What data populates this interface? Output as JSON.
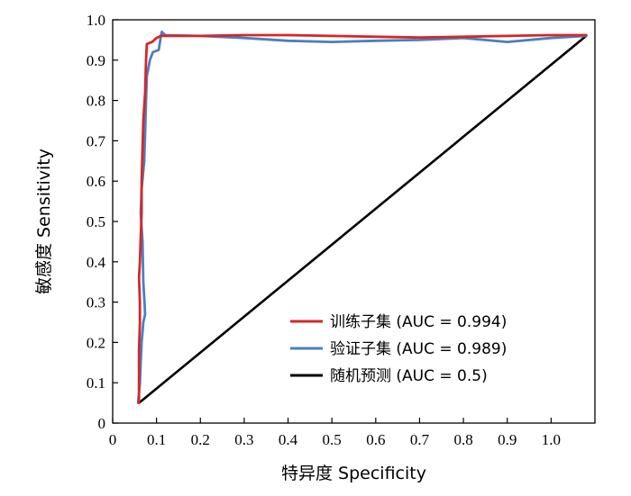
{
  "chart_data": {
    "type": "line",
    "title": "",
    "xlabel": "特异度 Specificity",
    "ylabel": "敏感度 Sensitivity",
    "xlim": [
      0,
      1.1
    ],
    "ylim": [
      0,
      1.0
    ],
    "x_ticks": [
      "0",
      "0.1",
      "0.2",
      "0.3",
      "0.4",
      "0.5",
      "0.6",
      "0.7",
      "0.8",
      "0.9",
      "1.0"
    ],
    "y_ticks": [
      "0",
      "0.1",
      "0.2",
      "0.3",
      "0.4",
      "0.5",
      "0.6",
      "0.7",
      "0.8",
      "0.9",
      "1.0"
    ],
    "grid": false,
    "legend_position": "bottom-right",
    "series": [
      {
        "name": "训练子集 (AUC = 0.994)",
        "color": "#d62728",
        "points": [
          [
            0.06,
            0.05
          ],
          [
            0.06,
            0.1
          ],
          [
            0.06,
            0.18
          ],
          [
            0.062,
            0.25
          ],
          [
            0.062,
            0.3
          ],
          [
            0.06,
            0.36
          ],
          [
            0.062,
            0.4
          ],
          [
            0.064,
            0.46
          ],
          [
            0.066,
            0.52
          ],
          [
            0.066,
            0.6
          ],
          [
            0.068,
            0.68
          ],
          [
            0.07,
            0.75
          ],
          [
            0.074,
            0.82
          ],
          [
            0.076,
            0.9
          ],
          [
            0.078,
            0.94
          ],
          [
            0.09,
            0.945
          ],
          [
            0.1,
            0.955
          ],
          [
            0.11,
            0.96
          ],
          [
            0.2,
            0.96
          ],
          [
            0.3,
            0.962
          ],
          [
            0.4,
            0.962
          ],
          [
            0.5,
            0.96
          ],
          [
            0.6,
            0.958
          ],
          [
            0.7,
            0.956
          ],
          [
            0.8,
            0.958
          ],
          [
            0.9,
            0.96
          ],
          [
            1.0,
            0.962
          ],
          [
            1.08,
            0.962
          ]
        ]
      },
      {
        "name": "验证子集 (AUC = 0.989)",
        "color": "#4a7fc1",
        "points": [
          [
            0.058,
            0.05
          ],
          [
            0.062,
            0.1
          ],
          [
            0.064,
            0.15
          ],
          [
            0.066,
            0.2
          ],
          [
            0.07,
            0.25
          ],
          [
            0.074,
            0.27
          ],
          [
            0.07,
            0.35
          ],
          [
            0.068,
            0.45
          ],
          [
            0.064,
            0.52
          ],
          [
            0.066,
            0.58
          ],
          [
            0.072,
            0.65
          ],
          [
            0.074,
            0.72
          ],
          [
            0.076,
            0.8
          ],
          [
            0.078,
            0.86
          ],
          [
            0.085,
            0.9
          ],
          [
            0.092,
            0.92
          ],
          [
            0.105,
            0.925
          ],
          [
            0.11,
            0.96
          ],
          [
            0.112,
            0.97
          ],
          [
            0.12,
            0.962
          ],
          [
            0.2,
            0.96
          ],
          [
            0.3,
            0.955
          ],
          [
            0.4,
            0.948
          ],
          [
            0.5,
            0.945
          ],
          [
            0.6,
            0.948
          ],
          [
            0.7,
            0.95
          ],
          [
            0.8,
            0.955
          ],
          [
            0.9,
            0.945
          ],
          [
            1.0,
            0.955
          ],
          [
            1.08,
            0.96
          ]
        ]
      },
      {
        "name": "随机预测 (AUC = 0.5)",
        "color": "#000000",
        "points": [
          [
            0.06,
            0.05
          ],
          [
            1.08,
            0.96
          ]
        ]
      }
    ]
  }
}
